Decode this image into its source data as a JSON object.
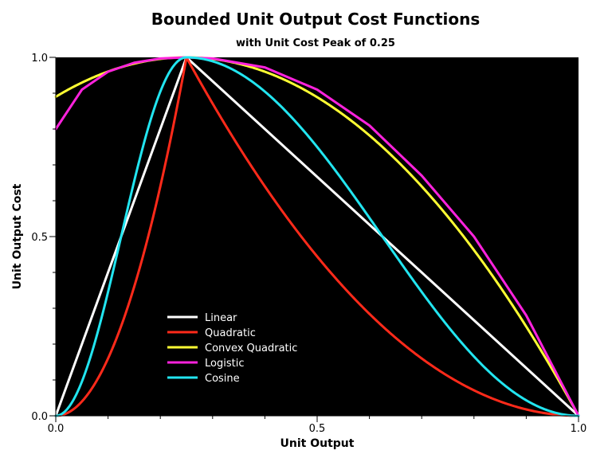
{
  "chart_data": {
    "type": "line",
    "title": "Bounded Unit Output Cost Functions",
    "subtitle": "with Unit Cost Peak of 0.25",
    "xlabel": "Unit Output",
    "ylabel": "Unit Output Cost",
    "xlim": [
      0,
      1
    ],
    "ylim": [
      0,
      1
    ],
    "x_ticks": [
      "0.0",
      "0.5",
      "1.0"
    ],
    "y_ticks": [
      "0.0",
      "0.5",
      "1.0"
    ],
    "grid": false,
    "legend_position": "lower-left",
    "background": "#000000",
    "peak": 0.25,
    "x": [
      0.0,
      0.05,
      0.1,
      0.15,
      0.2,
      0.25,
      0.3,
      0.4,
      0.5,
      0.6,
      0.7,
      0.8,
      0.9,
      1.0
    ],
    "series": [
      {
        "name": "Linear",
        "color": "#ffffff",
        "values": [
          0.0,
          0.2,
          0.4,
          0.6,
          0.8,
          1.0,
          0.933,
          0.8,
          0.667,
          0.533,
          0.4,
          0.267,
          0.133,
          0.0
        ]
      },
      {
        "name": "Quadratic",
        "color": "#ff2a1a",
        "values": [
          0.0,
          0.04,
          0.16,
          0.36,
          0.64,
          1.0,
          0.871,
          0.64,
          0.444,
          0.284,
          0.16,
          0.071,
          0.018,
          0.0
        ]
      },
      {
        "name": "Convex Quadratic",
        "color": "#ffff33",
        "values": [
          0.89,
          0.935,
          0.965,
          0.985,
          0.997,
          1.0,
          0.996,
          0.96,
          0.889,
          0.782,
          0.64,
          0.462,
          0.25,
          0.0
        ]
      },
      {
        "name": "Logistic",
        "color": "#ff22dd",
        "values": [
          0.8,
          0.91,
          0.96,
          0.985,
          0.997,
          1.0,
          0.997,
          0.972,
          0.91,
          0.81,
          0.67,
          0.5,
          0.28,
          0.0
        ]
      },
      {
        "name": "Cosine",
        "color": "#22e5f0",
        "values": [
          0.0,
          0.095,
          0.345,
          0.655,
          0.905,
          1.0,
          0.989,
          0.905,
          0.75,
          0.552,
          0.345,
          0.165,
          0.043,
          0.0
        ]
      }
    ]
  }
}
